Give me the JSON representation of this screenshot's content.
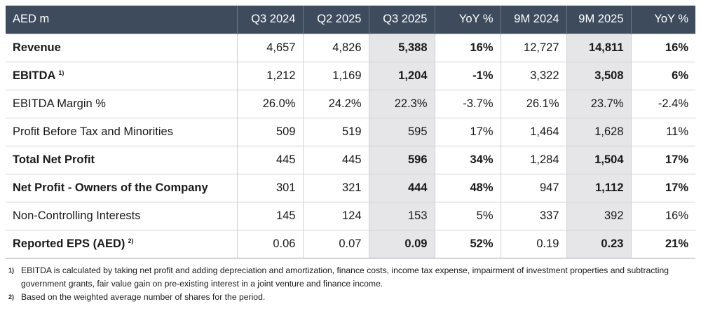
{
  "table": {
    "header": [
      "AED m",
      "Q3 2024",
      "Q2 2025",
      "Q3 2025",
      "YoY %",
      "9M 2024",
      "9M 2025",
      "YoY %"
    ],
    "shaded_columns": [
      3,
      6
    ],
    "rows": [
      {
        "label": "Revenue",
        "emphasis": true,
        "cells": [
          "4,657",
          "4,826",
          "5,388",
          "16%",
          "12,727",
          "14,811",
          "16%"
        ]
      },
      {
        "label": "EBITDA",
        "note": "1)",
        "emphasis": true,
        "cells": [
          "1,212",
          "1,169",
          "1,204",
          "-1%",
          "3,322",
          "3,508",
          "6%"
        ]
      },
      {
        "label": "EBITDA Margin %",
        "emphasis": false,
        "cells": [
          "26.0%",
          "24.2%",
          "22.3%",
          "-3.7%",
          "26.1%",
          "23.7%",
          "-2.4%"
        ]
      },
      {
        "label": "Profit Before Tax and Minorities",
        "emphasis": false,
        "cells": [
          "509",
          "519",
          "595",
          "17%",
          "1,464",
          "1,628",
          "11%"
        ]
      },
      {
        "label": "Total Net Profit",
        "emphasis": true,
        "cells": [
          "445",
          "445",
          "596",
          "34%",
          "1,284",
          "1,504",
          "17%"
        ]
      },
      {
        "label": "Net Profit - Owners of the Company",
        "emphasis": true,
        "cells": [
          "301",
          "321",
          "444",
          "48%",
          "947",
          "1,112",
          "17%"
        ]
      },
      {
        "label": "Non-Controlling Interests",
        "emphasis": false,
        "cells": [
          "145",
          "124",
          "153",
          "5%",
          "337",
          "392",
          "16%"
        ]
      },
      {
        "label": "Reported EPS (AED)",
        "note": "2)",
        "emphasis": true,
        "cells": [
          "0.06",
          "0.07",
          "0.09",
          "52%",
          "0.19",
          "0.23",
          "21%"
        ]
      }
    ]
  },
  "footnotes": [
    {
      "mark": "1)",
      "text": "EBITDA is calculated by taking net profit and adding depreciation and amortization, finance costs, income tax expense, impairment of investment properties and subtracting government grants, fair value gain on pre-existing interest in a joint venture and finance income."
    },
    {
      "mark": "2)",
      "text": "Based on the weighted average number of shares for the period."
    }
  ]
}
